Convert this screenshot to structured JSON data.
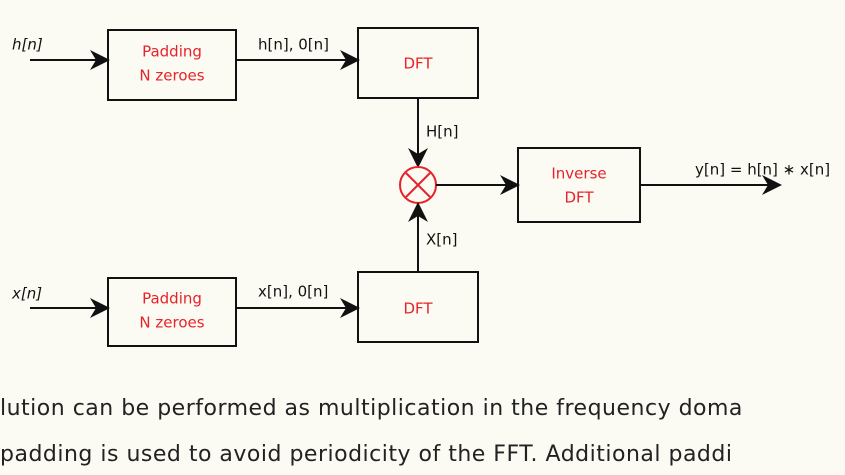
{
  "nodes": [
    {
      "label_lines": [
        "Padding",
        "N zeroes"
      ]
    },
    {
      "label_lines": [
        "DFT"
      ]
    },
    {
      "label_lines": [
        "Padding",
        "N zeroes"
      ]
    },
    {
      "label_lines": [
        "DFT"
      ]
    },
    {
      "label_lines": [
        "Inverse",
        "DFT"
      ]
    }
  ],
  "inputs": [
    "h[n]",
    "x[n]"
  ],
  "edge_labels": [
    "h[n], 0[n]",
    "x[n], 0[n]",
    "H[n]",
    "X[n]",
    "y[n] = h[n] ∗ x[n]"
  ],
  "text_lines": [
    "lution can be performed as multiplication in the frequency doma",
    "padding is used to avoid periodicity of the FFT. Additional paddi"
  ]
}
